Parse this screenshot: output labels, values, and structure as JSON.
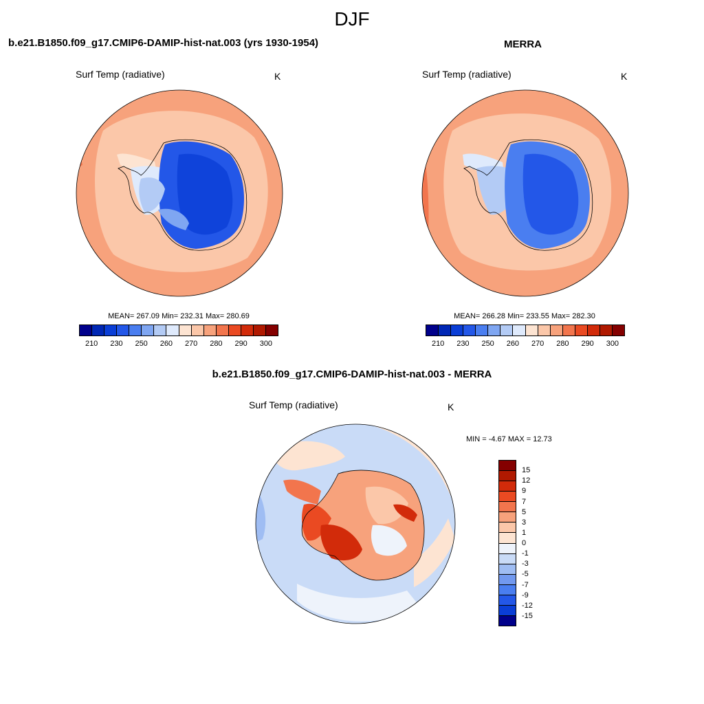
{
  "page_title": "DJF",
  "panels": [
    {
      "case_title": "b.e21.B1850.f09_g17.CMIP6-DAMIP-hist-nat.003 (yrs 1930-1954)",
      "variable": "Surf Temp (radiative)",
      "units": "K",
      "stats": "MEAN= 267.09  Min= 232.31  Max= 280.69",
      "levels": [
        "210",
        "230",
        "250",
        "260",
        "270",
        "280",
        "290",
        "300"
      ],
      "colors": [
        "#00008b",
        "#0027b5",
        "#0a3ed6",
        "#2357e8",
        "#4a7ef0",
        "#7fa6f2",
        "#b3cbf5",
        "#dfeafc",
        "#fde4d2",
        "#fbc7a9",
        "#f7a27c",
        "#f2754d",
        "#ea4a22",
        "#d22b0a",
        "#b01900",
        "#840000"
      ]
    },
    {
      "case_title": "MERRA",
      "variable": "Surf Temp (radiative)",
      "units": "K",
      "stats": "MEAN= 266.28  Min= 233.55  Max= 282.30",
      "levels": [
        "210",
        "230",
        "250",
        "260",
        "270",
        "280",
        "290",
        "300"
      ],
      "colors": [
        "#00008b",
        "#0027b5",
        "#0a3ed6",
        "#2357e8",
        "#4a7ef0",
        "#7fa6f2",
        "#b3cbf5",
        "#dfeafc",
        "#fde4d2",
        "#fbc7a9",
        "#f7a27c",
        "#f2754d",
        "#ea4a22",
        "#d22b0a",
        "#b01900",
        "#840000"
      ]
    }
  ],
  "diff": {
    "case_title": "b.e21.B1850.f09_g17.CMIP6-DAMIP-hist-nat.003 - MERRA",
    "variable": "Surf Temp (radiative)",
    "units": "K",
    "minmax": "MIN =  -4.67 MAX =  12.73",
    "levels": [
      "15",
      "12",
      "9",
      "7",
      "5",
      "3",
      "1",
      "0",
      "-1",
      "-3",
      "-5",
      "-7",
      "-9",
      "-12",
      "-15"
    ],
    "colors": [
      "#840000",
      "#b01900",
      "#d22b0a",
      "#ea4a22",
      "#f2754d",
      "#f7a27c",
      "#fbc7a9",
      "#fde4d2",
      "#eef3fb",
      "#c9dbf7",
      "#9fbdf3",
      "#7299ef",
      "#4a7ef0",
      "#2357e8",
      "#0a3ed6",
      "#00008b"
    ]
  }
}
